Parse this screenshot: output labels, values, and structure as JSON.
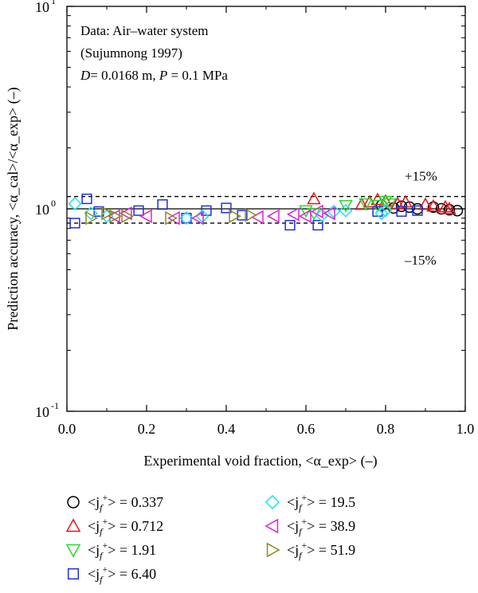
{
  "chart_data": {
    "type": "scatter",
    "yscale": "log",
    "xlim": [
      0.0,
      1.0
    ],
    "ylim": [
      0.1,
      10
    ],
    "xlabel": "Experimental void fraction, <α_exp> (–)",
    "ylabel": "Prediction accuracy, <α_cal>/<α_exp> (–)",
    "x_ticks": [
      "0.0",
      "0.2",
      "0.4",
      "0.6",
      "0.8",
      "1.0"
    ],
    "y_ticks": [
      {
        "value": 0.1,
        "label": "10",
        "exp": "-1"
      },
      {
        "value": 1,
        "label": "10",
        "exp": "0"
      },
      {
        "value": 10,
        "label": "10",
        "exp": "1"
      }
    ],
    "annotation": {
      "line1": "Data: Air–water system",
      "line2": "(Sujumnong 1997)",
      "line3_D": "D",
      "line3_mid": "= 0.0168 m, ",
      "line3_P": "P",
      "line3_end": " = 0.1 MPa"
    },
    "reference_lines": [
      {
        "y": 1.0,
        "style": "solid",
        "label": ""
      },
      {
        "y": 1.15,
        "style": "dashed",
        "label": "+15%"
      },
      {
        "y": 0.85,
        "style": "dashed",
        "label": "–15%"
      }
    ],
    "legend": {
      "position": "below",
      "prefix": "<j",
      "sub": "f",
      "sup": "+",
      "suffix": "> = "
    },
    "series": [
      {
        "name": "0.337",
        "marker": "circle",
        "color": "#000000",
        "x": [
          0.79,
          0.82,
          0.84,
          0.86,
          0.88,
          0.92,
          0.94,
          0.96,
          0.98
        ],
        "y": [
          1.04,
          1.01,
          1.03,
          1.02,
          1.0,
          1.02,
          1.0,
          0.99,
          0.98
        ]
      },
      {
        "name": "0.712",
        "marker": "triangle-up",
        "color": "#e8121a",
        "x": [
          0.62,
          0.74,
          0.76,
          0.78,
          0.8,
          0.83,
          0.85,
          0.9,
          0.92,
          0.95,
          0.96
        ],
        "y": [
          1.12,
          1.05,
          1.08,
          1.11,
          1.09,
          1.06,
          1.08,
          1.05,
          1.03,
          1.02,
          1.0
        ]
      },
      {
        "name": "1.91",
        "marker": "triangle-down",
        "color": "#2bd92b",
        "x": [
          0.6,
          0.62,
          0.7,
          0.75,
          0.78,
          0.8,
          0.81
        ],
        "y": [
          0.98,
          0.95,
          1.04,
          1.06,
          1.04,
          1.09,
          1.06
        ]
      },
      {
        "name": "6.40",
        "marker": "square",
        "color": "#1f2fe0",
        "x": [
          0.02,
          0.05,
          0.08,
          0.18,
          0.24,
          0.3,
          0.35,
          0.4,
          0.44,
          0.56,
          0.63,
          0.78,
          0.84,
          0.88
        ],
        "y": [
          0.85,
          1.12,
          0.97,
          0.98,
          1.05,
          0.9,
          0.98,
          1.01,
          0.93,
          0.83,
          0.83,
          0.97,
          0.97,
          0.98
        ]
      },
      {
        "name": "19.5",
        "marker": "diamond",
        "color": "#22e0ef",
        "x": [
          0.02,
          0.06,
          0.1,
          0.3,
          0.34,
          0.64,
          0.67,
          0.7,
          0.79,
          0.8
        ],
        "y": [
          1.06,
          0.95,
          0.92,
          0.9,
          0.92,
          0.93,
          0.97,
          0.98,
          0.95,
          0.98
        ]
      },
      {
        "name": "38.9",
        "marker": "triangle-left",
        "color": "#e020d8",
        "x": [
          0.12,
          0.15,
          0.2,
          0.27,
          0.33,
          0.48,
          0.52,
          0.57,
          0.6,
          0.63,
          0.66
        ],
        "y": [
          0.92,
          0.95,
          0.92,
          0.9,
          0.9,
          0.91,
          0.92,
          0.94,
          0.92,
          0.97,
          0.95
        ]
      },
      {
        "name": "51.9",
        "marker": "triangle-right",
        "color": "#8a8a1a",
        "x": [
          0.06,
          0.1,
          0.12,
          0.15,
          0.26,
          0.42,
          0.46
        ],
        "y": [
          0.9,
          0.95,
          0.92,
          0.92,
          0.9,
          0.92,
          0.93
        ]
      }
    ]
  }
}
